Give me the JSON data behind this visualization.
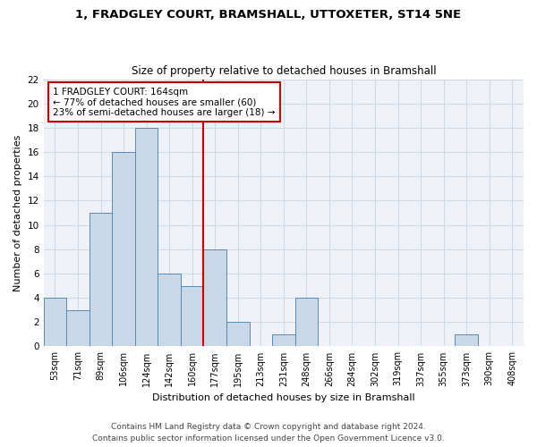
{
  "title1": "1, FRADGLEY COURT, BRAMSHALL, UTTOXETER, ST14 5NE",
  "title2": "Size of property relative to detached houses in Bramshall",
  "xlabel": "Distribution of detached houses by size in Bramshall",
  "ylabel": "Number of detached properties",
  "bin_labels": [
    "53sqm",
    "71sqm",
    "89sqm",
    "106sqm",
    "124sqm",
    "142sqm",
    "160sqm",
    "177sqm",
    "195sqm",
    "213sqm",
    "231sqm",
    "248sqm",
    "266sqm",
    "284sqm",
    "302sqm",
    "319sqm",
    "337sqm",
    "355sqm",
    "373sqm",
    "390sqm",
    "408sqm"
  ],
  "bar_values": [
    4,
    3,
    11,
    16,
    18,
    6,
    5,
    8,
    2,
    0,
    1,
    4,
    0,
    0,
    0,
    0,
    0,
    0,
    1,
    0,
    0
  ],
  "bar_color": "#c8d8e8",
  "bar_edge_color": "#5a8ab0",
  "vline_x_index": 6.5,
  "annotation_text": "1 FRADGLEY COURT: 164sqm\n← 77% of detached houses are smaller (60)\n23% of semi-detached houses are larger (18) →",
  "annotation_box_color": "#ffffff",
  "annotation_box_edge": "#cc0000",
  "vline_color": "#cc0000",
  "footer1": "Contains HM Land Registry data © Crown copyright and database right 2024.",
  "footer2": "Contains public sector information licensed under the Open Government Licence v3.0.",
  "ylim": [
    0,
    22
  ],
  "yticks": [
    0,
    2,
    4,
    6,
    8,
    10,
    12,
    14,
    16,
    18,
    20,
    22
  ],
  "grid_color": "#d0d8e8",
  "bg_color": "#eef2f8",
  "title1_fontsize": 9.5,
  "title2_fontsize": 8.5,
  "xlabel_fontsize": 8.0,
  "ylabel_fontsize": 8.0,
  "tick_fontsize": 7.5,
  "xtick_fontsize": 7.0,
  "annotation_fontsize": 7.5,
  "footer_fontsize": 6.5
}
